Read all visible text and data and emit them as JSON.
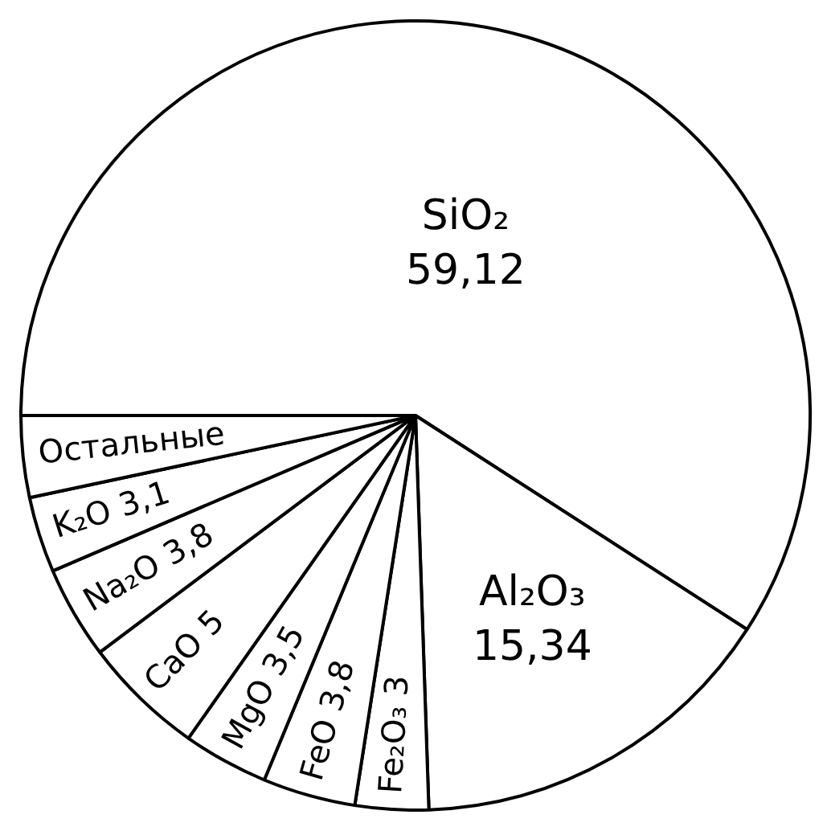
{
  "chart_data": {
    "type": "pie",
    "categories": [
      "SiO₂",
      "Al₂O₃",
      "Fe₂O₃",
      "FeO",
      "MgO",
      "CaO",
      "Na₂O",
      "K₂O",
      "Остальные"
    ],
    "values": [
      59.12,
      15.34,
      3,
      3.8,
      3.5,
      5,
      3.8,
      3.1,
      3.34
    ],
    "value_labels": [
      "59,12",
      "15,34",
      "3",
      "3,8",
      "3,5",
      "5",
      "3,8",
      "3,1",
      null
    ],
    "colors": [
      "#ffffff",
      "#ffffff",
      "#ffffff",
      "#ffffff",
      "#ffffff",
      "#ffffff",
      "#ffffff",
      "#ffffff",
      "#ffffff"
    ],
    "legend": false
  }
}
